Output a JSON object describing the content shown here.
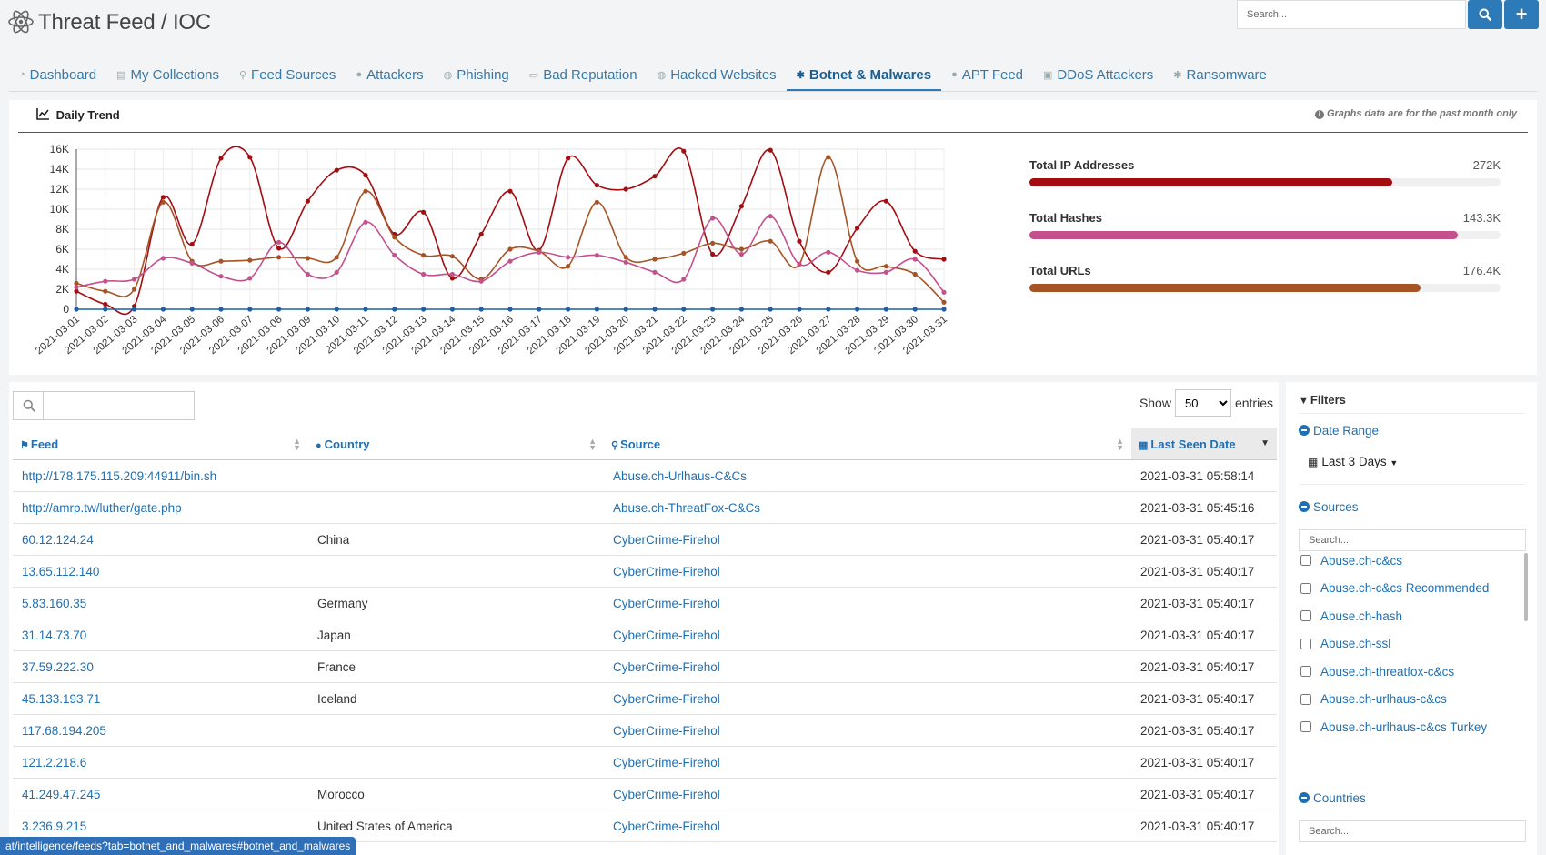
{
  "header": {
    "title": "Threat Feed / IOC",
    "search_placeholder": "Search...",
    "logo_icon": "atom-icon",
    "search_icon": "search-icon",
    "add_label": "+"
  },
  "tabs": [
    {
      "label": "Dashboard",
      "icon": "dashboard-icon"
    },
    {
      "label": "My Collections",
      "icon": "collection-icon"
    },
    {
      "label": "Feed Sources",
      "icon": "map-marker-icon"
    },
    {
      "label": "Attackers",
      "icon": "user-icon"
    },
    {
      "label": "Phishing",
      "icon": "globe-icon"
    },
    {
      "label": "Bad Reputation",
      "icon": "list-icon"
    },
    {
      "label": "Hacked Websites",
      "icon": "globe-icon"
    },
    {
      "label": "Botnet & Malwares",
      "icon": "bug-icon",
      "active": true
    },
    {
      "label": "APT Feed",
      "icon": "user-secret-icon"
    },
    {
      "label": "DDoS Attackers",
      "icon": "network-icon"
    },
    {
      "label": "Ransomware",
      "icon": "bug-icon"
    }
  ],
  "trend": {
    "title": "Daily Trend",
    "note": "Graphs data are for the past month only",
    "chart_icon": "line-chart-icon",
    "info_icon": "info-icon"
  },
  "chart_data": {
    "type": "line",
    "x": [
      "2021-03-01",
      "2021-03-02",
      "2021-03-03",
      "2021-03-04",
      "2021-03-05",
      "2021-03-06",
      "2021-03-07",
      "2021-03-08",
      "2021-03-09",
      "2021-03-10",
      "2021-03-11",
      "2021-03-12",
      "2021-03-13",
      "2021-03-14",
      "2021-03-15",
      "2021-03-16",
      "2021-03-17",
      "2021-03-18",
      "2021-03-19",
      "2021-03-20",
      "2021-03-21",
      "2021-03-22",
      "2021-03-23",
      "2021-03-24",
      "2021-03-25",
      "2021-03-26",
      "2021-03-27",
      "2021-03-28",
      "2021-03-29",
      "2021-03-30",
      "2021-03-31"
    ],
    "yticks": [
      "0",
      "2K",
      "4K",
      "6K",
      "8K",
      "10K",
      "12K",
      "14K",
      "16K"
    ],
    "ylim": [
      0,
      16000
    ],
    "grid": true,
    "series": [
      {
        "color": "#a30d12",
        "values": [
          1800,
          500,
          300,
          11200,
          6500,
          15100,
          15200,
          6100,
          10800,
          13900,
          13400,
          7500,
          9700,
          3100,
          7500,
          11800,
          5900,
          15100,
          12400,
          12000,
          13300,
          15800,
          5500,
          10300,
          15900,
          6800,
          3700,
          8100,
          10800,
          5800,
          5000
        ]
      },
      {
        "color": "#a65426",
        "values": [
          2600,
          1800,
          2000,
          10700,
          4800,
          4800,
          4900,
          5200,
          5100,
          5200,
          11800,
          7200,
          5400,
          5300,
          3000,
          6000,
          5800,
          4300,
          10700,
          5200,
          5000,
          5600,
          6600,
          6000,
          6800,
          4500,
          15200,
          4800,
          4300,
          3500,
          700
        ]
      },
      {
        "color": "#c4508c",
        "values": [
          2200,
          2800,
          3000,
          5100,
          4600,
          3300,
          3100,
          6700,
          3500,
          3700,
          8700,
          5400,
          3500,
          3500,
          2800,
          4800,
          5700,
          5200,
          5400,
          4700,
          3700,
          3000,
          9100,
          5500,
          9300,
          4500,
          5700,
          3900,
          3700,
          5000,
          1700
        ]
      },
      {
        "color": "#1f5fa8",
        "values": [
          0,
          0,
          0,
          0,
          0,
          0,
          0,
          0,
          0,
          0,
          0,
          0,
          0,
          0,
          0,
          0,
          0,
          0,
          0,
          0,
          0,
          0,
          0,
          0,
          0,
          0,
          0,
          0,
          0,
          0,
          0
        ]
      }
    ]
  },
  "stats": [
    {
      "label": "Total IP Addresses",
      "value": "272K",
      "fill": 0.77,
      "color": "#a30d12"
    },
    {
      "label": "Total Hashes",
      "value": "143.3K",
      "fill": 0.91,
      "color": "#c4508c"
    },
    {
      "label": "Total URLs",
      "value": "176.4K",
      "fill": 0.83,
      "color": "#a65426"
    }
  ],
  "table": {
    "show_label": "Show",
    "entries_label": "entries",
    "entries_value": "50",
    "columns": [
      "Feed",
      "Country",
      "Source",
      "Last Seen Date"
    ],
    "rows": [
      {
        "feed": "http://178.175.115.209:44911/bin.sh",
        "country": "",
        "source": "Abuse.ch-Urlhaus-C&Cs",
        "date": "2021-03-31 05:58:14"
      },
      {
        "feed": "http://amrp.tw/luther/gate.php",
        "country": "",
        "source": "Abuse.ch-ThreatFox-C&Cs",
        "date": "2021-03-31 05:45:16"
      },
      {
        "feed": "60.12.124.24",
        "country": "China",
        "source": "CyberCrime-Firehol",
        "date": "2021-03-31 05:40:17"
      },
      {
        "feed": "13.65.112.140",
        "country": "",
        "source": "CyberCrime-Firehol",
        "date": "2021-03-31 05:40:17"
      },
      {
        "feed": "5.83.160.35",
        "country": "Germany",
        "source": "CyberCrime-Firehol",
        "date": "2021-03-31 05:40:17"
      },
      {
        "feed": "31.14.73.70",
        "country": "Japan",
        "source": "CyberCrime-Firehol",
        "date": "2021-03-31 05:40:17"
      },
      {
        "feed": "37.59.222.30",
        "country": "France",
        "source": "CyberCrime-Firehol",
        "date": "2021-03-31 05:40:17"
      },
      {
        "feed": "45.133.193.71",
        "country": "Iceland",
        "source": "CyberCrime-Firehol",
        "date": "2021-03-31 05:40:17"
      },
      {
        "feed": "117.68.194.205",
        "country": "",
        "source": "CyberCrime-Firehol",
        "date": "2021-03-31 05:40:17"
      },
      {
        "feed": "121.2.218.6",
        "country": "",
        "source": "CyberCrime-Firehol",
        "date": "2021-03-31 05:40:17"
      },
      {
        "feed": "41.249.47.245",
        "country": "Morocco",
        "source": "CyberCrime-Firehol",
        "date": "2021-03-31 05:40:17"
      },
      {
        "feed": "3.236.9.215",
        "country": "United States of America",
        "source": "CyberCrime-Firehol",
        "date": "2021-03-31 05:40:17"
      }
    ]
  },
  "filters": {
    "title": "Filters",
    "date_range_label": "Date Range",
    "date_range_value": "Last 3 Days",
    "sources_label": "Sources",
    "sources_placeholder": "Search...",
    "sources": [
      "Abuse.ch-c&cs",
      "Abuse.ch-c&cs Recommended",
      "Abuse.ch-hash",
      "Abuse.ch-ssl",
      "Abuse.ch-threatfox-c&cs",
      "Abuse.ch-urlhaus-c&cs",
      "Abuse.ch-urlhaus-c&cs Turkey"
    ],
    "countries_label": "Countries",
    "countries_placeholder": "Search..."
  },
  "status_bar": {
    "url": "at/intelligence/feeds?tab=botnet_and_malwares#botnet_and_malwares"
  }
}
